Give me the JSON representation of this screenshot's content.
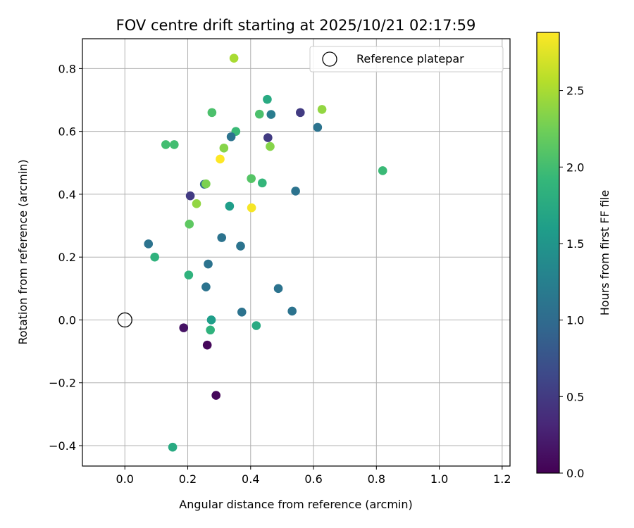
{
  "chart_data": {
    "type": "scatter",
    "title": "FOV centre drift starting at 2025/10/21 02:17:59",
    "xlabel": "Angular distance from reference (arcmin)",
    "ylabel": "Rotation from reference (arcmin)",
    "xlim": [
      -0.135,
      1.225
    ],
    "ylim": [
      -0.465,
      0.895
    ],
    "xticks": [
      0.0,
      0.2,
      0.4,
      0.6,
      0.8,
      1.0,
      1.2
    ],
    "xtick_labels": [
      "0.0",
      "0.2",
      "0.4",
      "0.6",
      "0.8",
      "1.0",
      "1.2"
    ],
    "yticks": [
      -0.4,
      -0.2,
      0.0,
      0.2,
      0.4,
      0.6,
      0.8
    ],
    "ytick_labels": [
      "−0.4",
      "−0.2",
      "0.0",
      "0.2",
      "0.4",
      "0.6",
      "0.8"
    ],
    "grid": true,
    "legend": {
      "position": "top-right",
      "entries": [
        "Reference platepar"
      ]
    },
    "reference_point": {
      "x": 0.0,
      "y": 0.0,
      "label": "Reference platepar"
    },
    "colorbar": {
      "label": "Hours from first FF file",
      "colormap": "viridis",
      "range": [
        0.0,
        2.88
      ],
      "ticks": [
        0.0,
        0.5,
        1.0,
        1.5,
        2.0,
        2.5
      ],
      "tick_labels": [
        "0.0",
        "0.5",
        "1.0",
        "1.5",
        "2.0",
        "2.5"
      ],
      "colormap_stops": [
        "#440154",
        "#482878",
        "#3e4989",
        "#31688e",
        "#26828e",
        "#1f9e89",
        "#35b779",
        "#6ece58",
        "#b5de2b",
        "#fde725"
      ]
    },
    "points": [
      {
        "x": 0.347,
        "y": 0.833,
        "hours": 2.5
      },
      {
        "x": 0.453,
        "y": 0.702,
        "hours": 1.75
      },
      {
        "x": 0.627,
        "y": 0.67,
        "hours": 2.4
      },
      {
        "x": 0.558,
        "y": 0.66,
        "hours": 0.5
      },
      {
        "x": 0.277,
        "y": 0.66,
        "hours": 2.05
      },
      {
        "x": 0.428,
        "y": 0.655,
        "hours": 2.05
      },
      {
        "x": 0.465,
        "y": 0.654,
        "hours": 1.2
      },
      {
        "x": 0.613,
        "y": 0.613,
        "hours": 1.1
      },
      {
        "x": 0.353,
        "y": 0.6,
        "hours": 1.95
      },
      {
        "x": 0.338,
        "y": 0.583,
        "hours": 1.1
      },
      {
        "x": 0.455,
        "y": 0.58,
        "hours": 0.5
      },
      {
        "x": 0.13,
        "y": 0.558,
        "hours": 2.0
      },
      {
        "x": 0.157,
        "y": 0.558,
        "hours": 2.0
      },
      {
        "x": 0.462,
        "y": 0.552,
        "hours": 2.35
      },
      {
        "x": 0.315,
        "y": 0.547,
        "hours": 2.35
      },
      {
        "x": 0.303,
        "y": 0.512,
        "hours": 2.88
      },
      {
        "x": 0.82,
        "y": 0.475,
        "hours": 1.95
      },
      {
        "x": 0.402,
        "y": 0.45,
        "hours": 2.1
      },
      {
        "x": 0.437,
        "y": 0.436,
        "hours": 1.9
      },
      {
        "x": 0.253,
        "y": 0.432,
        "hours": 1.0
      },
      {
        "x": 0.258,
        "y": 0.433,
        "hours": 2.3
      },
      {
        "x": 0.543,
        "y": 0.41,
        "hours": 1.1
      },
      {
        "x": 0.208,
        "y": 0.395,
        "hours": 0.5
      },
      {
        "x": 0.228,
        "y": 0.37,
        "hours": 2.4
      },
      {
        "x": 0.403,
        "y": 0.357,
        "hours": 2.85
      },
      {
        "x": 0.333,
        "y": 0.362,
        "hours": 1.6
      },
      {
        "x": 0.205,
        "y": 0.305,
        "hours": 2.15
      },
      {
        "x": 0.308,
        "y": 0.262,
        "hours": 1.1
      },
      {
        "x": 0.075,
        "y": 0.242,
        "hours": 1.1
      },
      {
        "x": 0.368,
        "y": 0.235,
        "hours": 1.1
      },
      {
        "x": 0.095,
        "y": 0.2,
        "hours": 1.85
      },
      {
        "x": 0.265,
        "y": 0.178,
        "hours": 1.1
      },
      {
        "x": 0.203,
        "y": 0.143,
        "hours": 1.85
      },
      {
        "x": 0.258,
        "y": 0.105,
        "hours": 1.1
      },
      {
        "x": 0.488,
        "y": 0.1,
        "hours": 1.1
      },
      {
        "x": 0.532,
        "y": 0.028,
        "hours": 1.1
      },
      {
        "x": 0.372,
        "y": 0.025,
        "hours": 1.1
      },
      {
        "x": 0.275,
        "y": 0.0,
        "hours": 1.6
      },
      {
        "x": 0.418,
        "y": -0.018,
        "hours": 1.75
      },
      {
        "x": 0.187,
        "y": -0.025,
        "hours": 0.15
      },
      {
        "x": 0.272,
        "y": -0.032,
        "hours": 1.85
      },
      {
        "x": 0.262,
        "y": -0.08,
        "hours": 0.05
      },
      {
        "x": 0.29,
        "y": -0.24,
        "hours": 0.05
      },
      {
        "x": 0.152,
        "y": -0.405,
        "hours": 1.75
      }
    ]
  }
}
